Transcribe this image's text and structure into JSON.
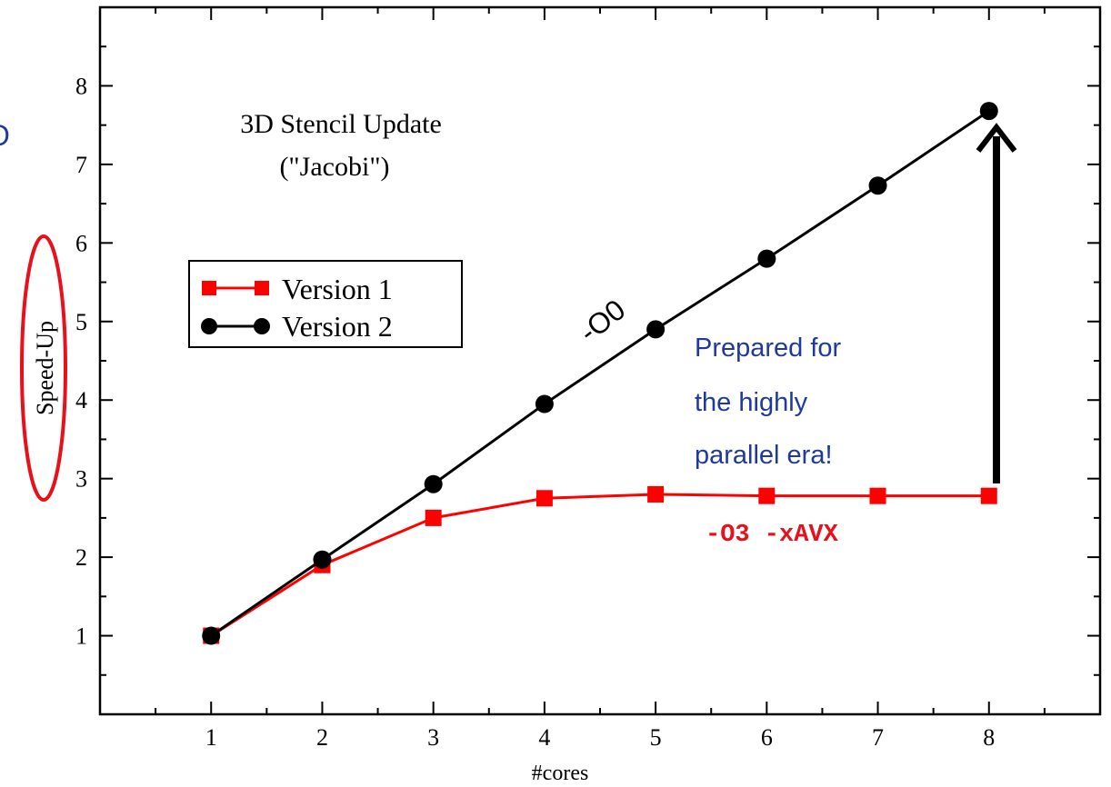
{
  "chart_data": {
    "type": "line",
    "title": "3D Stencil Update",
    "subtitle": "(\"Jacobi\")",
    "xlabel": "#cores",
    "ylabel": "Speed-Up",
    "x": [
      1,
      2,
      3,
      4,
      5,
      6,
      7,
      8
    ],
    "xlim": [
      0,
      9
    ],
    "ylim": [
      0,
      9
    ],
    "xticks": [
      1,
      2,
      3,
      4,
      5,
      6,
      7,
      8
    ],
    "yticks": [
      1,
      2,
      3,
      4,
      5,
      6,
      7,
      8
    ],
    "grid": false,
    "legend_position": "middle-left",
    "series": [
      {
        "name": "Version 1",
        "color": "#ff0000",
        "marker": "square",
        "values": [
          1.0,
          1.9,
          2.5,
          2.75,
          2.8,
          2.78,
          2.78,
          2.78
        ]
      },
      {
        "name": "Version 2",
        "color": "#000000",
        "marker": "circle",
        "values": [
          1.0,
          1.97,
          2.93,
          3.95,
          4.9,
          5.8,
          6.73,
          7.68
        ]
      }
    ],
    "annotations": {
      "version2_flag": "-O0",
      "version1_flags": "-O3 -xAVX",
      "note_lines": [
        "Prepared for",
        "the highly",
        "parallel era!"
      ],
      "left_fragment": "O"
    },
    "colors": {
      "note": "#1f3a9a",
      "highlight_ellipse": "#e8101a",
      "flag_red": "#e8101a"
    }
  }
}
